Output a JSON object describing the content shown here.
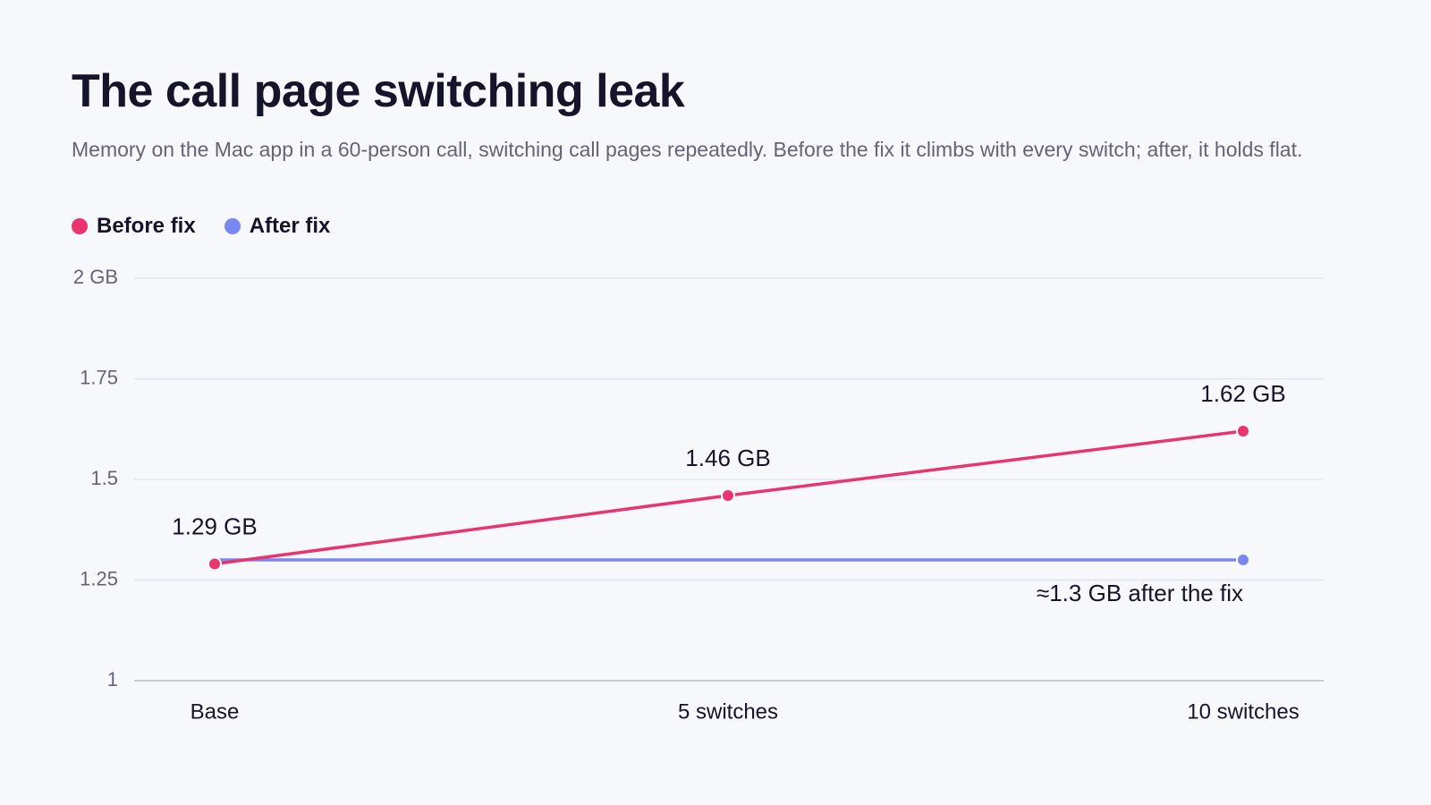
{
  "chart_data": {
    "type": "line",
    "title": "The call page switching leak",
    "subtitle": "Memory on the Mac app in a 60-person call, switching call pages repeatedly. Before the fix it climbs with every switch; after, it holds flat.",
    "categories": [
      "Base",
      "5 switches",
      "10 switches"
    ],
    "series": [
      {
        "name": "Before fix",
        "color": "#e8356d",
        "values": [
          1.29,
          1.46,
          1.62
        ],
        "value_labels": [
          "1.29 GB",
          "1.46 GB",
          "1.62 GB"
        ]
      },
      {
        "name": "After fix",
        "color": "#7b87f0",
        "values": [
          1.3,
          1.3,
          1.3
        ]
      }
    ],
    "annotation": "≈1.3 GB after the fix",
    "ylim": [
      1,
      2
    ],
    "yticks": [
      1,
      1.25,
      1.5,
      1.75,
      {
        "value": 2,
        "label": "2 GB"
      }
    ],
    "grid": true
  }
}
